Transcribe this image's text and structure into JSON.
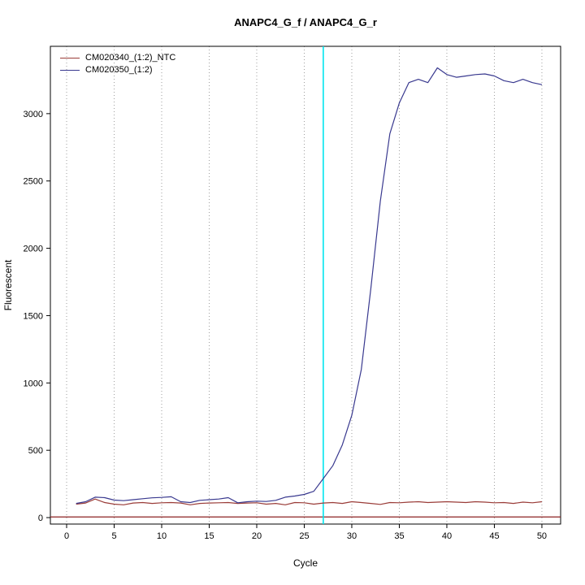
{
  "chart_data": {
    "type": "line",
    "title": "ANAPC4_G_f / ANAPC4_G_r",
    "xlabel": "Cycle",
    "ylabel": "Fluorescent",
    "x_ticks": [
      0,
      5,
      10,
      15,
      20,
      25,
      30,
      35,
      40,
      45,
      50
    ],
    "y_ticks": [
      0,
      500,
      1000,
      1500,
      2000,
      2500,
      3000
    ],
    "xlim": [
      -1.71,
      51.97
    ],
    "ylim": [
      -48,
      3500
    ],
    "grid": "vertical-dotted",
    "grid_color": "#9e9e9e",
    "threshold_line": {
      "y": 5,
      "color": "#8b2020"
    },
    "ct_marker": {
      "x": 27,
      "color": "#00e5ee"
    },
    "cycles": [
      1,
      2,
      3,
      4,
      5,
      6,
      7,
      8,
      9,
      10,
      11,
      12,
      13,
      14,
      15,
      16,
      17,
      18,
      19,
      20,
      21,
      22,
      23,
      24,
      25,
      26,
      27,
      28,
      29,
      30,
      31,
      32,
      33,
      34,
      35,
      36,
      37,
      38,
      39,
      40,
      41,
      42,
      43,
      44,
      45,
      46,
      47,
      48,
      49,
      50
    ],
    "series": [
      {
        "name": "CM020340_(1:2)_NTC",
        "color": "#9a3c38",
        "values": [
          100,
          108,
          138,
          112,
          100,
          95,
          108,
          112,
          105,
          110,
          112,
          108,
          95,
          105,
          108,
          110,
          112,
          105,
          108,
          110,
          100,
          105,
          95,
          112,
          110,
          100,
          108,
          112,
          105,
          118,
          112,
          105,
          98,
          112,
          110,
          115,
          118,
          112,
          115,
          118,
          115,
          112,
          118,
          115,
          110,
          112,
          105,
          115,
          110,
          118
        ]
      },
      {
        "name": "CM020350_(1:2)",
        "color": "#39398f",
        "values": [
          105,
          118,
          152,
          148,
          130,
          126,
          133,
          140,
          147,
          150,
          155,
          118,
          112,
          128,
          133,
          138,
          148,
          110,
          118,
          122,
          120,
          128,
          152,
          160,
          172,
          195,
          290,
          385,
          540,
          760,
          1100,
          1700,
          2350,
          2850,
          3080,
          3230,
          3255,
          3230,
          3340,
          3290,
          3270,
          3280,
          3290,
          3295,
          3280,
          3245,
          3230,
          3255,
          3230,
          3215
        ]
      }
    ]
  }
}
